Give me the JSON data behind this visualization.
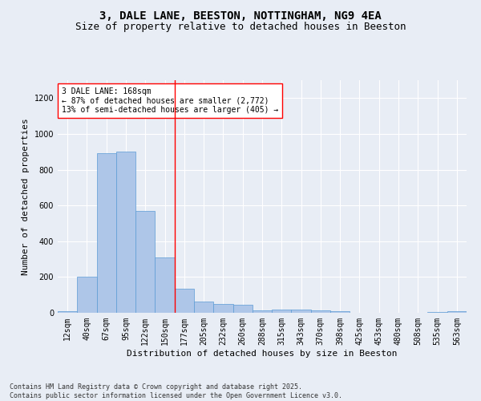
{
  "title": "3, DALE LANE, BEESTON, NOTTINGHAM, NG9 4EA",
  "subtitle": "Size of property relative to detached houses in Beeston",
  "xlabel": "Distribution of detached houses by size in Beeston",
  "ylabel": "Number of detached properties",
  "footer": "Contains HM Land Registry data © Crown copyright and database right 2025.\nContains public sector information licensed under the Open Government Licence v3.0.",
  "categories": [
    "12sqm",
    "40sqm",
    "67sqm",
    "95sqm",
    "122sqm",
    "150sqm",
    "177sqm",
    "205sqm",
    "232sqm",
    "260sqm",
    "288sqm",
    "315sqm",
    "343sqm",
    "370sqm",
    "398sqm",
    "425sqm",
    "453sqm",
    "480sqm",
    "508sqm",
    "535sqm",
    "563sqm"
  ],
  "values": [
    10,
    200,
    890,
    900,
    570,
    310,
    135,
    65,
    50,
    45,
    15,
    20,
    18,
    15,
    8,
    2,
    2,
    2,
    2,
    5,
    10
  ],
  "bar_color": "#aec6e8",
  "bar_edge_color": "#5b9bd5",
  "bg_color": "#e8edf5",
  "grid_color": "#ffffff",
  "vline_x_index": 5.5,
  "vline_color": "red",
  "annotation_box_text": "3 DALE LANE: 168sqm\n← 87% of detached houses are smaller (2,772)\n13% of semi-detached houses are larger (405) →",
  "annotation_box_color": "red",
  "annotation_box_bg": "white",
  "title_fontsize": 10,
  "subtitle_fontsize": 9,
  "axis_label_fontsize": 8,
  "tick_fontsize": 7,
  "annotation_fontsize": 7,
  "footer_fontsize": 6,
  "ylim": [
    0,
    1300
  ]
}
